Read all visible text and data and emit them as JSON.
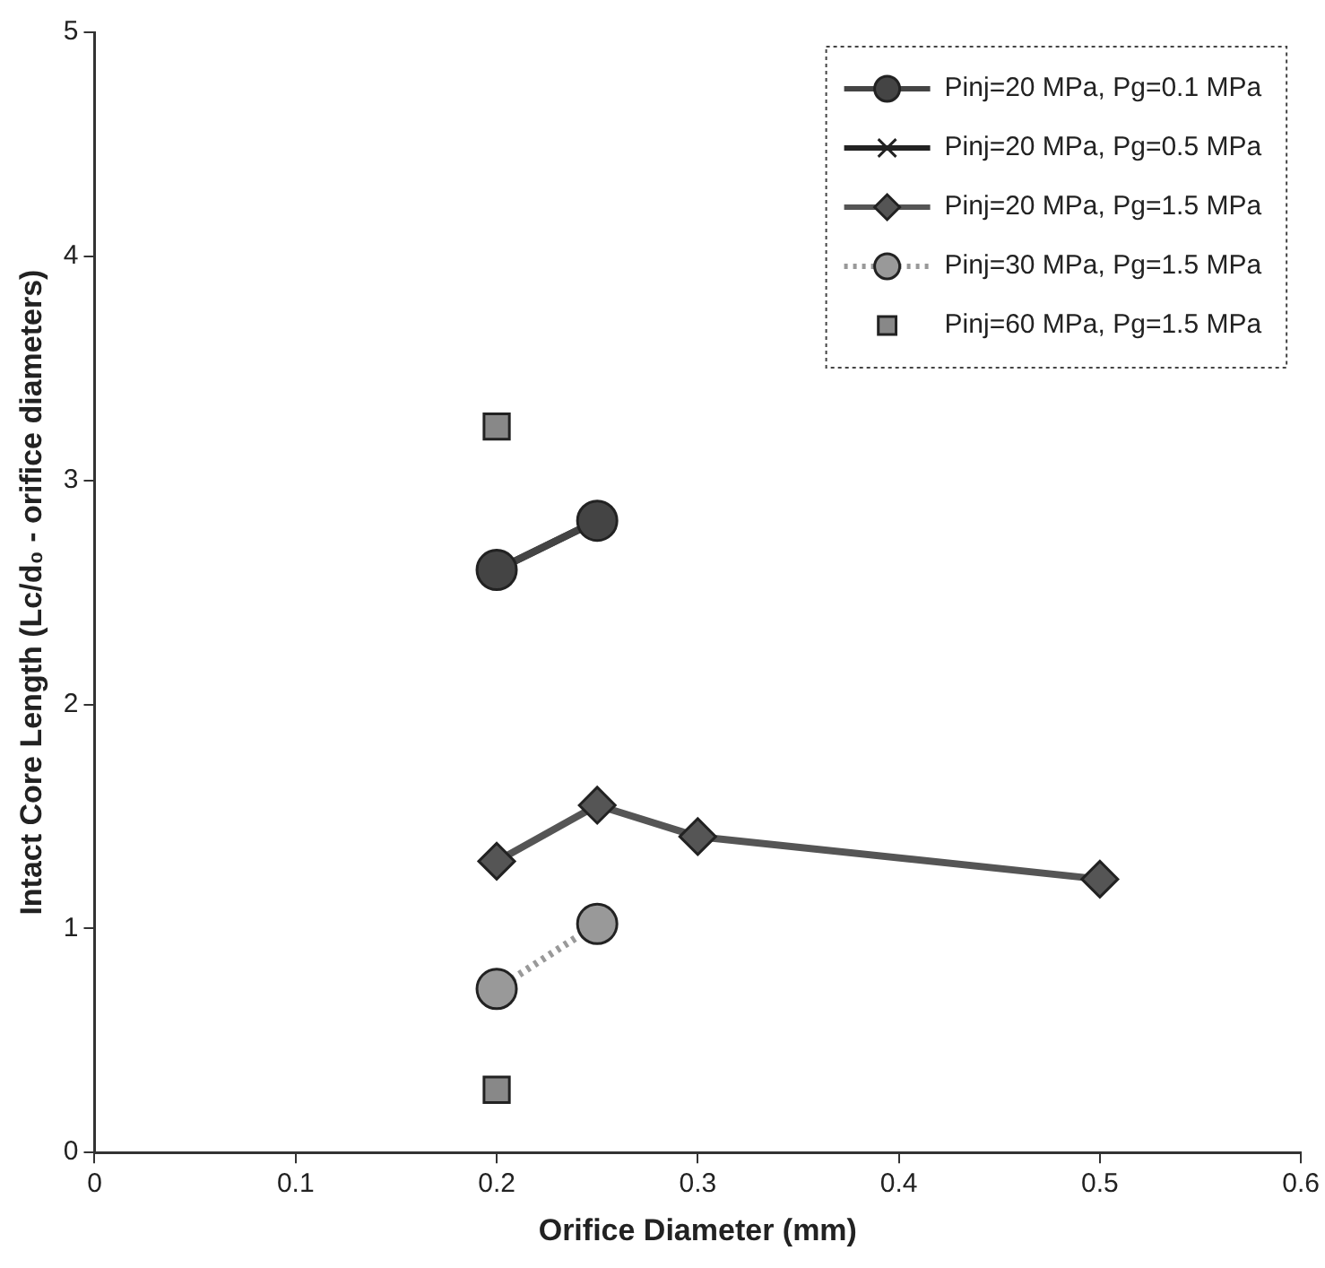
{
  "chart_data": {
    "type": "line",
    "xlabel": "Orifice Diameter (mm)",
    "ylabel": "Intact Core Length (Lc/d₀ - orifice diameters)",
    "xlim": [
      0,
      0.6
    ],
    "xticks": [
      0,
      0.1,
      0.2,
      0.3,
      0.4,
      0.5,
      0.6
    ],
    "ylim": [
      0,
      5
    ],
    "yticks": [
      0,
      1,
      2,
      3,
      4,
      5
    ],
    "grid": false,
    "legend": "top right",
    "series": [
      {
        "name": "Pinj=20 MPa, Pg=0.1 MPa",
        "color": "#444444",
        "marker": "circle",
        "x": [
          0.2,
          0.25
        ],
        "values": [
          2.6,
          2.82
        ]
      },
      {
        "name": "Pinj=20 MPa, Pg=0.5 MPa",
        "color": "#222222",
        "marker": "cross",
        "x": [
          0.2,
          0.25
        ],
        "values": [
          2.6,
          2.82
        ]
      },
      {
        "name": "Pinj=20 MPa, Pg=1.5 MPa",
        "color": "#555555",
        "marker": "diamond",
        "x": [
          0.2,
          0.25,
          0.3,
          0.5
        ],
        "values": [
          1.3,
          1.55,
          1.41,
          1.22
        ]
      },
      {
        "name": "Pinj=30 MPa, Pg=1.5 MPa",
        "color": "#999999",
        "marker": "circle",
        "line_style": "dotted",
        "x": [
          0.2,
          0.25
        ],
        "values": [
          0.73,
          1.02
        ]
      },
      {
        "name": "Pinj=60 MPa, Pg=1.5 MPa",
        "type": "scatter",
        "color": "#888888",
        "marker": "square",
        "x": [
          0.2,
          0.2
        ],
        "values": [
          3.24,
          0.28
        ]
      }
    ]
  }
}
